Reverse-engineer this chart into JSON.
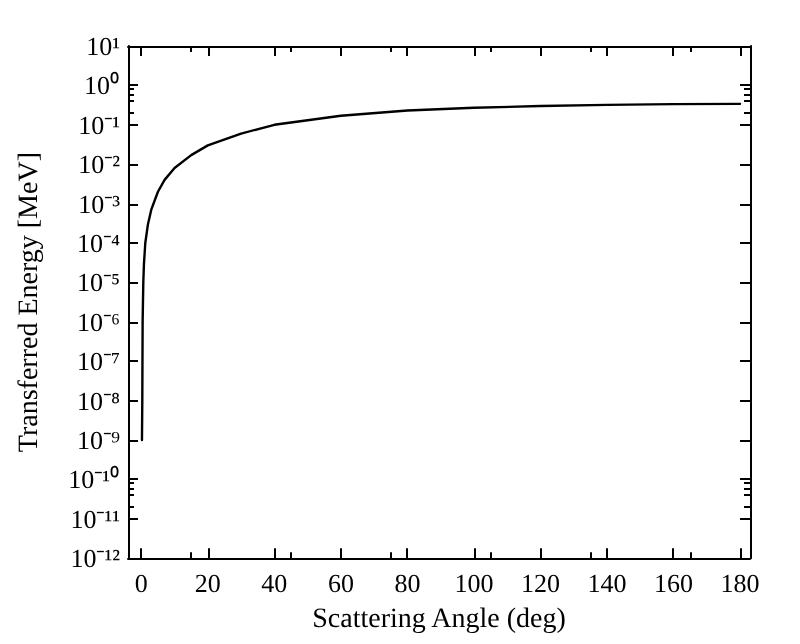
{
  "chart_data": {
    "type": "line",
    "xlabel": "Scattering Angle (deg)",
    "ylabel": "Transferred Energy [MeV]",
    "x": [
      0.2,
      0.3,
      0.4,
      0.6,
      0.8,
      1.2,
      2,
      3,
      5,
      7,
      10,
      15,
      20,
      30,
      40,
      50,
      60,
      80,
      100,
      120,
      140,
      160,
      180
    ],
    "series": [
      {
        "color": "#000000",
        "values": [
          1e-09,
          1e-08,
          1e-06,
          1e-05,
          3e-05,
          0.0001,
          0.0003,
          0.0007,
          0.002,
          0.004,
          0.008,
          0.017,
          0.03,
          0.06,
          0.1,
          0.13,
          0.17,
          0.23,
          0.27,
          0.3,
          0.32,
          0.335,
          0.34
        ]
      }
    ],
    "xlim": [
      -4,
      183
    ],
    "xticks": [
      0,
      20,
      40,
      60,
      80,
      100,
      120,
      140,
      160,
      180
    ],
    "ylim": [
      1e-12,
      10
    ],
    "log": "y",
    "yticks": [
      {
        "value": 1e-12,
        "label": "10⁻¹²"
      },
      {
        "value": 1e-11,
        "label": "10⁻¹¹"
      },
      {
        "value": 1e-10,
        "label": "10⁻¹⁰"
      },
      {
        "value": 1e-09,
        "label": "10⁻⁹"
      },
      {
        "value": 1e-08,
        "label": "10⁻⁸"
      },
      {
        "value": 1e-07,
        "label": "10⁻⁷"
      },
      {
        "value": 1e-06,
        "label": "10⁻⁶"
      },
      {
        "value": 1e-05,
        "label": "10⁻⁵"
      },
      {
        "value": 0.0001,
        "label": "10⁻⁴"
      },
      {
        "value": 0.001,
        "label": "10⁻³"
      },
      {
        "value": 0.01,
        "label": "10⁻²"
      },
      {
        "value": 0.1,
        "label": "10⁻¹"
      },
      {
        "value": 1,
        "label": "10⁰"
      },
      {
        "value": 10,
        "label": "10¹"
      }
    ],
    "grid": false,
    "marker": "none",
    "line_style": "solid"
  }
}
